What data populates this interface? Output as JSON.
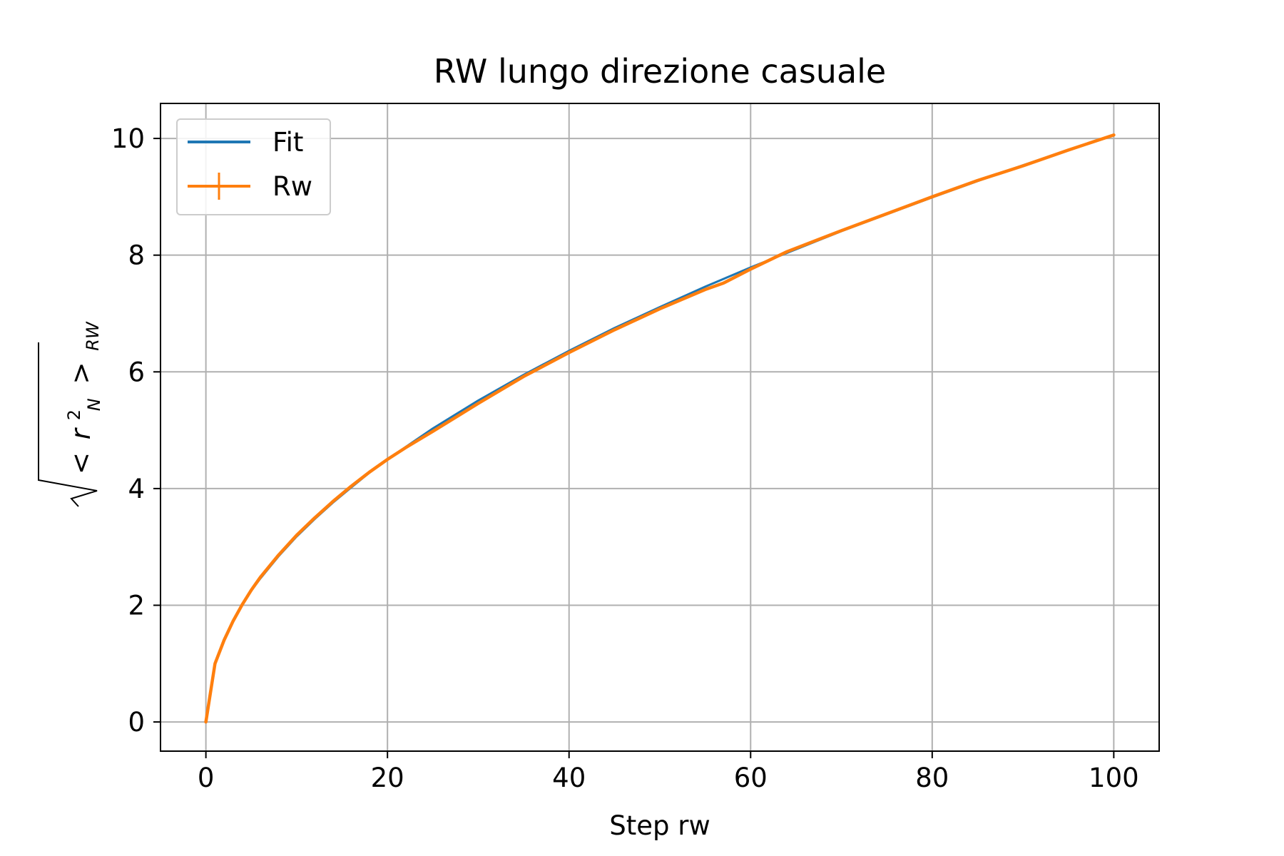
{
  "chart_data": {
    "type": "line",
    "title": "RW lungo direzione casuale",
    "xlabel": "Step rw",
    "ylabel": {
      "open": "<",
      "var": "r",
      "sup": "2",
      "sub": "N",
      "close": ">",
      "subscript": "RW"
    },
    "xlim": [
      -5,
      105
    ],
    "ylim": [
      -0.5,
      10.6
    ],
    "xticks": [
      "0",
      "20",
      "40",
      "60",
      "80",
      "100"
    ],
    "yticks": [
      "0",
      "2",
      "4",
      "6",
      "8",
      "10"
    ],
    "grid": true,
    "legend_position": "upper-left",
    "series": [
      {
        "name": "Fit",
        "color": "#1f77b4",
        "x": [
          0,
          1,
          2,
          3,
          4,
          5,
          6,
          8,
          10,
          12,
          14,
          16,
          18,
          20,
          25,
          30,
          35,
          40,
          45,
          50,
          55,
          60,
          65,
          70,
          75,
          80,
          85,
          90,
          95,
          100
        ],
        "y": [
          0,
          1.0,
          1.42,
          1.74,
          2.01,
          2.25,
          2.46,
          2.84,
          3.18,
          3.48,
          3.76,
          4.02,
          4.27,
          4.5,
          5.03,
          5.51,
          5.95,
          6.36,
          6.75,
          7.11,
          7.46,
          7.79,
          8.1,
          8.41,
          8.7,
          8.99,
          9.27,
          9.54,
          9.8,
          10.05
        ]
      },
      {
        "name": "Rw",
        "color": "#ff7f0e",
        "x": [
          0,
          1,
          2,
          3,
          4,
          5,
          6,
          8,
          10,
          12,
          14,
          16,
          18,
          20,
          22,
          25,
          30,
          35,
          40,
          45,
          50,
          55,
          57,
          60,
          64,
          70,
          75,
          80,
          85,
          90,
          95,
          100
        ],
        "y": [
          0,
          1.0,
          1.4,
          1.73,
          2.01,
          2.26,
          2.48,
          2.86,
          3.2,
          3.5,
          3.78,
          4.04,
          4.28,
          4.5,
          4.7,
          4.98,
          5.46,
          5.92,
          6.33,
          6.72,
          7.08,
          7.41,
          7.52,
          7.76,
          8.06,
          8.42,
          8.71,
          9.0,
          9.28,
          9.53,
          9.8,
          10.06
        ]
      }
    ]
  }
}
